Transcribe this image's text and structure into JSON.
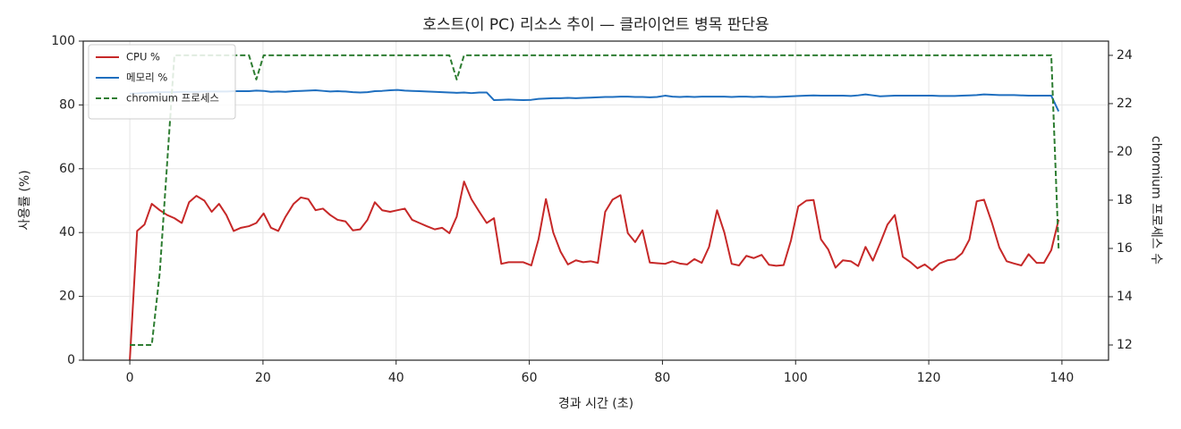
{
  "chart_data": {
    "type": "line",
    "title": "호스트(이 PC) 리소스 추이 — 클라이언트 병목 판단용",
    "xlabel": "경과 시간 (초)",
    "ylabel": "사용률 (%)",
    "y2label": "chromium 프로세스 수",
    "grid": true,
    "legend": "upper left",
    "xlim": [
      -7,
      147
    ],
    "xticks": [
      0,
      20,
      40,
      60,
      80,
      100,
      120,
      140
    ],
    "ylim": [
      0,
      100
    ],
    "yticks": [
      0,
      20,
      40,
      60,
      80,
      100
    ],
    "y2lim": [
      11.37,
      24.59
    ],
    "y2ticks": [
      12,
      14,
      16,
      18,
      20,
      22,
      24
    ],
    "x": [
      0,
      1.1,
      2.2,
      3.3,
      4.5,
      5.6,
      6.7,
      7.8,
      8.9,
      10.0,
      11.2,
      12.3,
      13.4,
      14.5,
      15.6,
      16.7,
      17.9,
      19.0,
      20.1,
      21.2,
      22.3,
      23.4,
      24.6,
      25.7,
      26.8,
      27.9,
      29.0,
      30.1,
      31.2,
      32.4,
      33.5,
      34.6,
      35.7,
      36.8,
      37.9,
      39.1,
      40.2,
      41.3,
      42.4,
      43.5,
      44.6,
      45.8,
      46.9,
      48.0,
      49.1,
      50.2,
      51.3,
      52.5,
      53.6,
      54.7,
      55.8,
      56.9,
      58.0,
      59.1,
      60.3,
      61.4,
      62.5,
      63.6,
      64.7,
      65.8,
      67.0,
      68.1,
      69.2,
      70.3,
      71.4,
      72.5,
      73.7,
      74.8,
      75.9,
      77.0,
      78.1,
      79.2,
      80.4,
      81.5,
      82.6,
      83.7,
      84.8,
      85.9,
      87.0,
      88.2,
      89.3,
      90.4,
      91.5,
      92.6,
      93.7,
      94.9,
      96.0,
      97.1,
      98.2,
      99.3,
      100.4,
      101.6,
      102.7,
      103.8,
      104.9,
      106.0,
      107.1,
      108.3,
      109.4,
      110.5,
      111.6,
      112.7,
      113.8,
      114.9,
      116.1,
      117.2,
      118.3,
      119.4,
      120.5,
      121.6,
      122.8,
      123.9,
      125.0,
      126.1,
      127.2,
      128.3,
      129.5,
      130.6,
      131.7,
      132.8,
      133.9,
      135.0,
      136.2,
      137.3,
      138.4,
      139.5
    ],
    "series": [
      {
        "name": "CPU %",
        "color": "#c62828",
        "linestyle": "solid",
        "axis": "y",
        "values": [
          0,
          40.5,
          42.5,
          49,
          47,
          45.5,
          44.5,
          43,
          49.5,
          51.5,
          50,
          46.5,
          49,
          45.5,
          40.5,
          41.5,
          42,
          43,
          46,
          41.5,
          40.5,
          45,
          49,
          51,
          50.5,
          47,
          47.5,
          45.5,
          44,
          43.5,
          40.7,
          41,
          44,
          49.5,
          47,
          46.5,
          47,
          47.5,
          44,
          43,
          42,
          41,
          41.5,
          39.8,
          45,
          56,
          50.5,
          46.5,
          43,
          44.5,
          30.2,
          30.7,
          30.7,
          30.7,
          29.7,
          38,
          50.5,
          40,
          34,
          30,
          31.3,
          30.7,
          31,
          30.5,
          46.5,
          50.3,
          51.7,
          39.8,
          37,
          40.7,
          30.6,
          30.4,
          30.2,
          31,
          30.3,
          30,
          31.7,
          30.5,
          35.5,
          47,
          40,
          30.2,
          29.7,
          32.7,
          32,
          33,
          29.9,
          29.6,
          29.8,
          37.5,
          48.2,
          50,
          50.2,
          37.9,
          34.7,
          29,
          31.3,
          31,
          29.5,
          35.5,
          31.2,
          36.7,
          42.5,
          45.5,
          32.4,
          30.8,
          28.8,
          30,
          28.2,
          30.3,
          31.3,
          31.6,
          33.5,
          37.8,
          49.8,
          50.3,
          43,
          35.3,
          31,
          30.3,
          29.7,
          33.2,
          30.5,
          30.5,
          34.5,
          44
        ]
      },
      {
        "name": "메모리 %",
        "color": "#1f6fbf",
        "linestyle": "solid",
        "axis": "y",
        "values": [
          83.5,
          83.6,
          83.8,
          83.9,
          84,
          84,
          84,
          84.1,
          84.1,
          84.1,
          84.2,
          84.2,
          84.2,
          84.2,
          84.3,
          84.3,
          84.3,
          84.5,
          84.4,
          84.1,
          84.2,
          84.1,
          84.3,
          84.4,
          84.5,
          84.6,
          84.4,
          84.2,
          84.3,
          84.2,
          84,
          83.9,
          84,
          84.3,
          84.4,
          84.6,
          84.7,
          84.5,
          84.4,
          84.3,
          84.2,
          84.1,
          84,
          83.9,
          83.8,
          83.9,
          83.7,
          83.9,
          83.9,
          81.5,
          81.6,
          81.7,
          81.6,
          81.5,
          81.6,
          81.9,
          82,
          82.1,
          82.1,
          82.2,
          82.1,
          82.2,
          82.3,
          82.4,
          82.5,
          82.5,
          82.6,
          82.6,
          82.5,
          82.5,
          82.4,
          82.5,
          82.9,
          82.6,
          82.5,
          82.6,
          82.5,
          82.6,
          82.6,
          82.6,
          82.6,
          82.5,
          82.6,
          82.6,
          82.5,
          82.6,
          82.5,
          82.5,
          82.6,
          82.7,
          82.8,
          82.9,
          83,
          82.9,
          82.9,
          82.9,
          82.9,
          82.8,
          83,
          83.3,
          83,
          82.7,
          82.8,
          82.9,
          82.9,
          82.9,
          82.9,
          82.9,
          82.9,
          82.8,
          82.8,
          82.8,
          82.9,
          83,
          83.1,
          83.3,
          83.2,
          83.1,
          83.1,
          83.1,
          83,
          82.9,
          82.9,
          82.9,
          82.9,
          78
        ]
      },
      {
        "name": "chromium 프로세스",
        "color": "#2e7d32",
        "linestyle": "dashed",
        "axis": "y2",
        "values": [
          12,
          12,
          12,
          12,
          15,
          19.5,
          24,
          24,
          24,
          24,
          24,
          24,
          24,
          24,
          24,
          24,
          24,
          23,
          24,
          24,
          24,
          24,
          24,
          24,
          24,
          24,
          24,
          24,
          24,
          24,
          24,
          24,
          24,
          24,
          24,
          24,
          24,
          24,
          24,
          24,
          24,
          24,
          24,
          24,
          23,
          24,
          24,
          24,
          24,
          24,
          24,
          24,
          24,
          24,
          24,
          24,
          24,
          24,
          24,
          24,
          24,
          24,
          24,
          24,
          24,
          24,
          24,
          24,
          24,
          24,
          24,
          24,
          24,
          24,
          24,
          24,
          24,
          24,
          24,
          24,
          24,
          24,
          24,
          24,
          24,
          24,
          24,
          24,
          24,
          24,
          24,
          24,
          24,
          24,
          24,
          24,
          24,
          24,
          24,
          24,
          24,
          24,
          24,
          24,
          24,
          24,
          24,
          24,
          24,
          24,
          24,
          24,
          24,
          24,
          24,
          24,
          24,
          24,
          24,
          24,
          24,
          24,
          24,
          24,
          24,
          16
        ]
      }
    ]
  }
}
